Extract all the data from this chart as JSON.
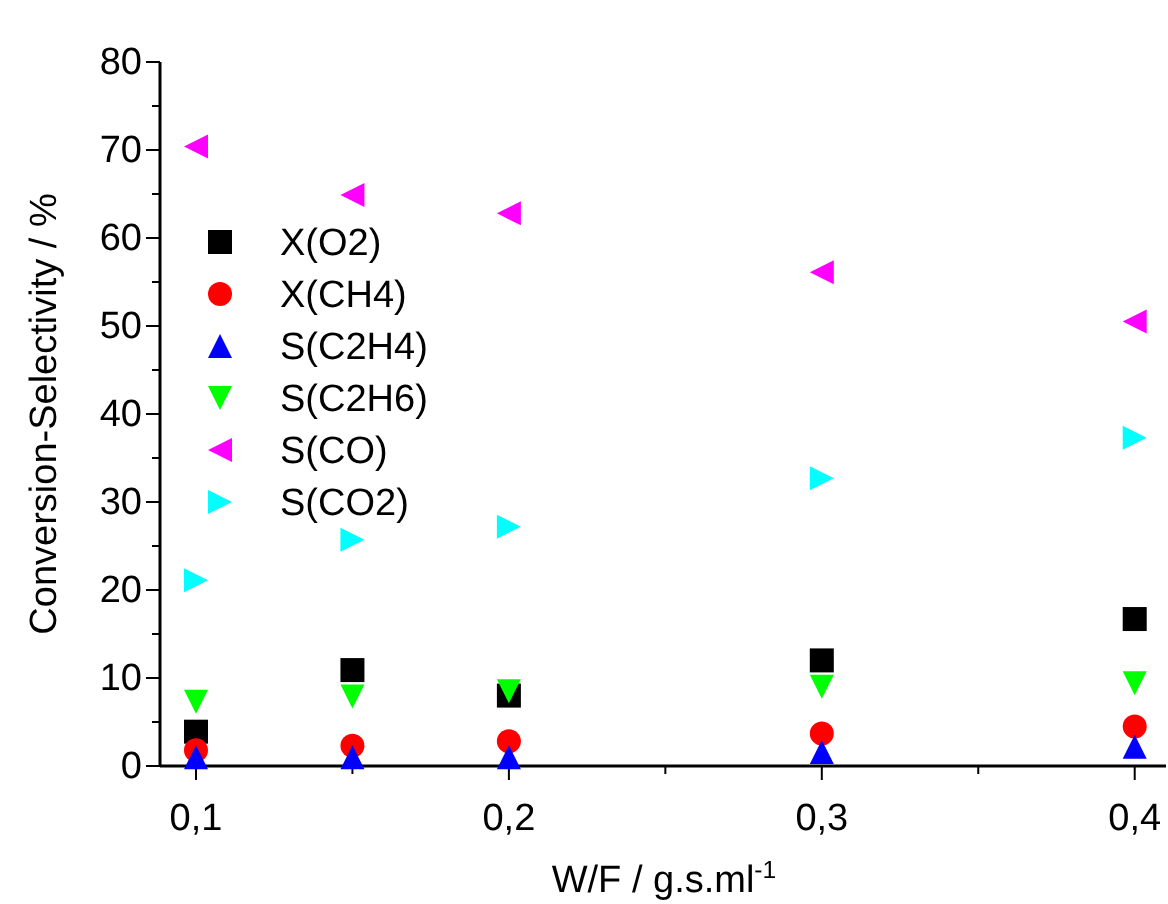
{
  "chart_data": {
    "type": "scatter",
    "xlabel": "W/F / g.s.ml$^{-1}$",
    "ylabel": "Conversion-Selectivity / %",
    "x": [
      0.1,
      0.15,
      0.2,
      0.3,
      0.4
    ],
    "series": [
      {
        "name": "X(O2)",
        "color": "#000000",
        "marker": "square",
        "values": [
          3.9,
          10.9,
          8.0,
          12.0,
          16.7
        ]
      },
      {
        "name": "X(CH4)",
        "color": "#ff0000",
        "marker": "circle",
        "values": [
          1.8,
          2.3,
          2.8,
          3.7,
          4.5
        ]
      },
      {
        "name": "S(C2H4)",
        "color": "#0000ff",
        "marker": "triangle",
        "values": [
          1.0,
          1.0,
          1.0,
          1.6,
          2.2
        ]
      },
      {
        "name": "S(C2H6)",
        "color": "#00ff00",
        "marker": "triangle-down",
        "values": [
          7.3,
          7.9,
          8.5,
          9.0,
          9.4
        ]
      },
      {
        "name": "S(CO)",
        "color": "#ff00ff",
        "marker": "triangle-left",
        "values": [
          70.4,
          64.9,
          62.8,
          56.1,
          50.5
        ]
      },
      {
        "name": "S(CO2)",
        "color": "#00ffff",
        "marker": "triangle-right",
        "values": [
          21.1,
          25.7,
          27.2,
          32.7,
          37.3
        ]
      }
    ],
    "xlim": [
      0.0885,
      0.41
    ],
    "xticks": [
      {
        "value": 0.1,
        "label": "0,1"
      },
      {
        "value": 0.15,
        "label": null
      },
      {
        "value": 0.2,
        "label": "0,2"
      },
      {
        "value": 0.25,
        "label": null
      },
      {
        "value": 0.3,
        "label": "0,3"
      },
      {
        "value": 0.35,
        "label": null
      },
      {
        "value": 0.4,
        "label": "0,4"
      }
    ],
    "ylim": [
      0,
      80
    ],
    "yticks": [
      0,
      {
        "value": 5,
        "label": null
      },
      10,
      {
        "value": 15,
        "label": null
      },
      20,
      {
        "value": 25,
        "label": null
      },
      30,
      {
        "value": 35,
        "label": null
      },
      40,
      {
        "value": 45,
        "label": null
      },
      50,
      {
        "value": 55,
        "label": null
      },
      60,
      {
        "value": 65,
        "label": null
      },
      70,
      {
        "value": 75,
        "label": null
      },
      80
    ],
    "grid": false,
    "legend": "top left"
  }
}
